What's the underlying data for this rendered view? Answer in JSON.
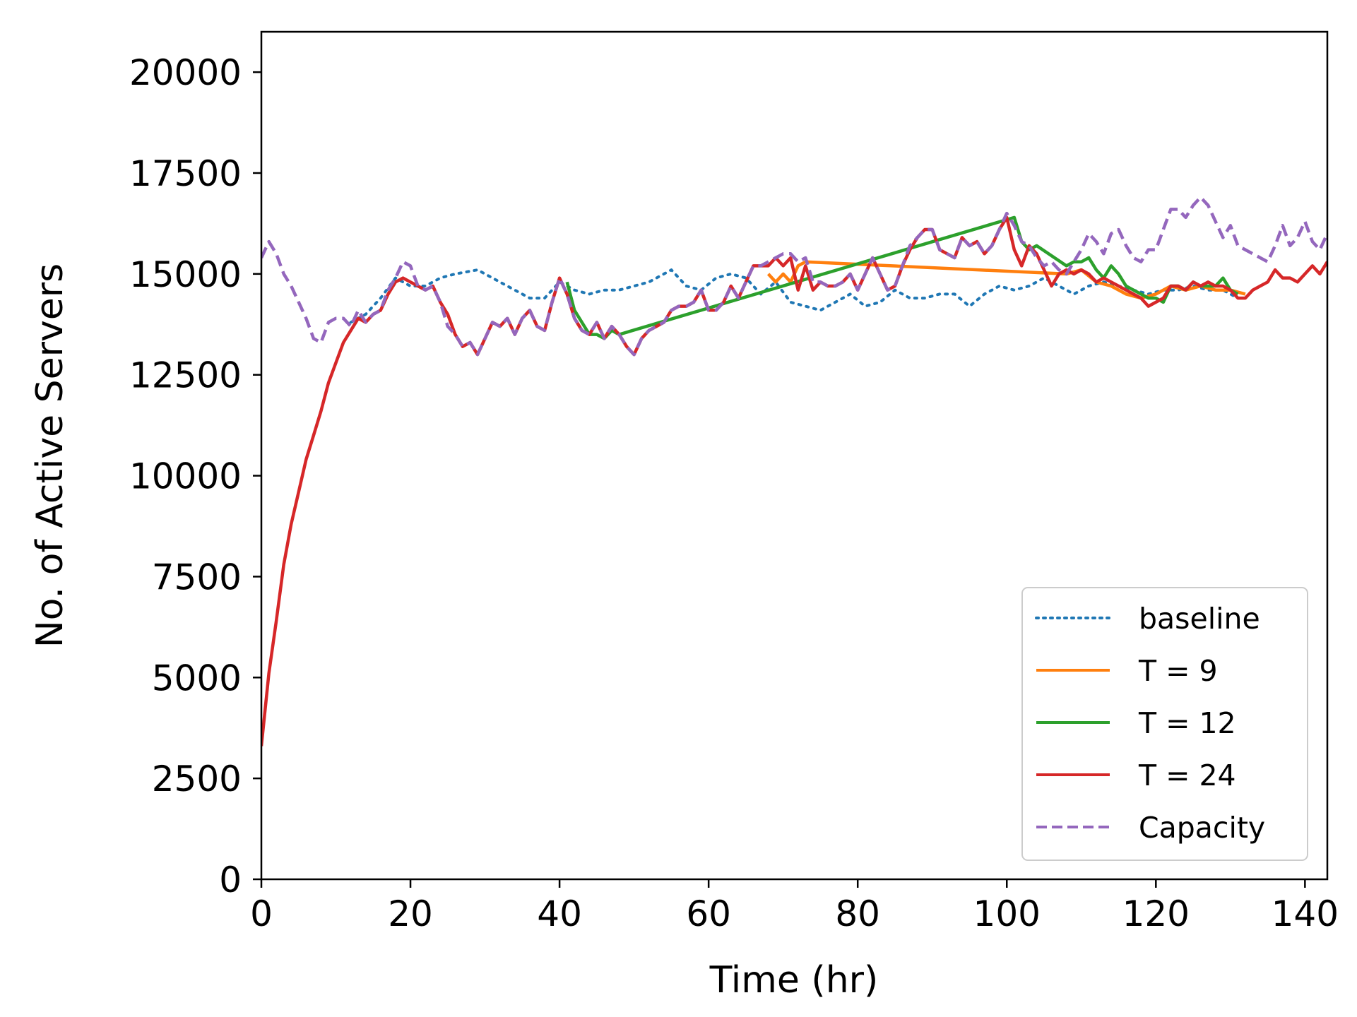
{
  "chart_data": {
    "type": "line",
    "xlabel": "Time (hr)",
    "ylabel": "No. of Active Servers",
    "xlim": [
      0,
      143
    ],
    "ylim": [
      0,
      21000
    ],
    "xticks": [
      0,
      20,
      40,
      60,
      80,
      100,
      120,
      140
    ],
    "yticks": [
      0,
      2500,
      5000,
      7500,
      10000,
      12500,
      15000,
      17500,
      20000
    ],
    "grid": false,
    "legend_position": "lower right",
    "series": [
      {
        "name": "baseline",
        "color": "#1f77b4",
        "style": "dotted",
        "x": [
          12,
          14,
          16,
          18,
          20,
          22,
          24,
          26,
          29,
          31,
          33,
          36,
          38,
          40,
          42,
          44,
          46,
          48,
          50,
          52,
          54,
          55,
          57,
          59,
          61,
          63,
          65,
          67,
          69,
          71,
          73,
          75,
          77,
          79,
          81,
          83,
          85,
          87,
          89,
          91,
          93,
          95,
          97,
          99,
          101,
          103,
          105,
          107,
          109,
          111,
          113,
          115,
          117,
          119,
          121,
          123,
          125,
          127,
          129,
          131
        ],
        "y": [
          13800,
          14000,
          14400,
          14900,
          14700,
          14700,
          14900,
          15000,
          15100,
          14900,
          14700,
          14400,
          14400,
          14800,
          14600,
          14500,
          14600,
          14600,
          14700,
          14800,
          15000,
          15100,
          14700,
          14600,
          14900,
          15000,
          14900,
          14500,
          14800,
          14300,
          14200,
          14100,
          14300,
          14500,
          14200,
          14300,
          14600,
          14400,
          14400,
          14500,
          14500,
          14200,
          14500,
          14700,
          14600,
          14700,
          14900,
          14700,
          14500,
          14700,
          14800,
          14700,
          14600,
          14500,
          14600,
          14600,
          14700,
          14600,
          14600,
          14400
        ]
      },
      {
        "name": "T = 9",
        "color": "#ff7f0e",
        "style": "solid",
        "x": [
          68,
          69,
          70,
          71,
          72,
          73,
          108,
          110,
          112,
          114,
          116,
          118,
          120,
          122,
          124,
          126,
          128,
          130,
          132
        ],
        "y": [
          15000,
          14800,
          15000,
          14800,
          15200,
          15300,
          15000,
          15100,
          14800,
          14700,
          14500,
          14400,
          14500,
          14700,
          14600,
          14700,
          14600,
          14600,
          14500
        ]
      },
      {
        "name": "T = 12",
        "color": "#2ca02c",
        "style": "solid",
        "x": [
          41,
          42,
          43,
          44,
          45,
          46,
          47,
          48,
          101,
          102,
          103,
          104,
          108,
          109,
          110,
          111,
          112,
          113,
          114,
          115,
          116,
          117,
          118,
          119,
          120,
          121,
          122,
          123,
          124,
          125,
          126,
          127,
          128,
          129,
          130,
          131
        ],
        "y": [
          14800,
          14100,
          13800,
          13500,
          13500,
          13400,
          13600,
          13500,
          16400,
          15800,
          15600,
          15700,
          15200,
          15300,
          15300,
          15400,
          15100,
          14900,
          15200,
          15000,
          14700,
          14600,
          14500,
          14400,
          14400,
          14300,
          14700,
          14700,
          14600,
          14800,
          14700,
          14700,
          14700,
          14900,
          14600,
          14500
        ]
      },
      {
        "name": "T = 24",
        "color": "#d62728",
        "style": "solid",
        "x": [
          0,
          0.5,
          1,
          2,
          3,
          4,
          5,
          6,
          7,
          8,
          9,
          10,
          11,
          12,
          13,
          14,
          15,
          16,
          17,
          18,
          19,
          20,
          21,
          22,
          23,
          24,
          25,
          26,
          27,
          28,
          29,
          30,
          31,
          32,
          33,
          34,
          35,
          36,
          37,
          38,
          39,
          40,
          41,
          42,
          43,
          44,
          45,
          46,
          47,
          48,
          49,
          50,
          51,
          52,
          53,
          54,
          55,
          56,
          57,
          58,
          59,
          60,
          61,
          62,
          63,
          64,
          65,
          66,
          67,
          68,
          69,
          70,
          71,
          72,
          73,
          74,
          75,
          76,
          77,
          78,
          79,
          80,
          81,
          82,
          83,
          84,
          85,
          86,
          87,
          88,
          89,
          90,
          91,
          92,
          93,
          94,
          95,
          96,
          97,
          98,
          99,
          100,
          101,
          102,
          103,
          104,
          105,
          106,
          107,
          108,
          109,
          110,
          111,
          112,
          113,
          114,
          115,
          116,
          117,
          118,
          119,
          120,
          121,
          122,
          123,
          124,
          125,
          126,
          127,
          128,
          129,
          130,
          131,
          132,
          133,
          134,
          135,
          136,
          137,
          138,
          139,
          140,
          141,
          142,
          143
        ],
        "y": [
          3300,
          4200,
          5100,
          6400,
          7800,
          8800,
          9600,
          10400,
          11000,
          11600,
          12300,
          12800,
          13300,
          13600,
          13900,
          13800,
          14000,
          14100,
          14500,
          14800,
          14900,
          14800,
          14700,
          14600,
          14700,
          14300,
          14000,
          13500,
          13200,
          13300,
          13000,
          13400,
          13800,
          13700,
          13900,
          13500,
          13900,
          14100,
          13700,
          13600,
          14300,
          14900,
          14500,
          13900,
          13600,
          13500,
          13800,
          13400,
          13700,
          13500,
          13200,
          13000,
          13400,
          13600,
          13700,
          13800,
          14100,
          14200,
          14200,
          14300,
          14600,
          14100,
          14100,
          14300,
          14700,
          14400,
          14800,
          15200,
          15200,
          15200,
          15400,
          15200,
          15400,
          14600,
          15200,
          14600,
          14800,
          14700,
          14700,
          14800,
          15000,
          14600,
          15000,
          15400,
          15000,
          14600,
          14700,
          15200,
          15600,
          15900,
          16100,
          16100,
          15600,
          15500,
          15400,
          15900,
          15700,
          15800,
          15500,
          15700,
          16100,
          16400,
          15600,
          15200,
          15700,
          15500,
          15100,
          14700,
          15000,
          15100,
          15000,
          15100,
          15000,
          14800,
          14900,
          14800,
          14700,
          14600,
          14500,
          14400,
          14200,
          14300,
          14400,
          14700,
          14700,
          14600,
          14800,
          14700,
          14800,
          14700,
          14700,
          14600,
          14400,
          14400,
          14600,
          14700,
          14800,
          15100,
          14900,
          14900,
          14800,
          15000,
          15200,
          15000,
          15300
        ]
      },
      {
        "name": "Capacity",
        "color": "#9467bd",
        "style": "dashed",
        "x": [
          0,
          1,
          2,
          3,
          4,
          5,
          6,
          7,
          8,
          9,
          10,
          11,
          12,
          13,
          14,
          15,
          16,
          17,
          18,
          19,
          20,
          21,
          22,
          23,
          24,
          25,
          26,
          27,
          28,
          29,
          30,
          31,
          32,
          33,
          34,
          35,
          36,
          37,
          38,
          39,
          40,
          41,
          42,
          43,
          44,
          45,
          46,
          47,
          48,
          49,
          50,
          51,
          52,
          53,
          54,
          55,
          56,
          57,
          58,
          59,
          60,
          61,
          62,
          63,
          64,
          65,
          66,
          67,
          68,
          69,
          70,
          71,
          72,
          73,
          74,
          75,
          76,
          77,
          78,
          79,
          80,
          81,
          82,
          83,
          84,
          85,
          86,
          87,
          88,
          89,
          90,
          91,
          92,
          93,
          94,
          95,
          96,
          97,
          98,
          99,
          100,
          101,
          102,
          103,
          104,
          105,
          106,
          107,
          108,
          109,
          110,
          111,
          112,
          113,
          114,
          115,
          116,
          117,
          118,
          119,
          120,
          121,
          122,
          123,
          124,
          125,
          126,
          127,
          128,
          129,
          130,
          131,
          132,
          133,
          134,
          135,
          136,
          137,
          138,
          139,
          140,
          141,
          142,
          143
        ],
        "y": [
          15400,
          15800,
          15500,
          15000,
          14700,
          14300,
          13900,
          13400,
          13300,
          13800,
          13900,
          13900,
          13700,
          14100,
          13800,
          14000,
          14100,
          14600,
          14900,
          15300,
          15200,
          14700,
          14600,
          14700,
          14300,
          13700,
          13500,
          13200,
          13300,
          13000,
          13400,
          13800,
          13700,
          13900,
          13500,
          13900,
          14100,
          13700,
          13600,
          14300,
          14900,
          14500,
          13900,
          13600,
          13500,
          13800,
          13400,
          13700,
          13500,
          13200,
          13000,
          13400,
          13600,
          13700,
          13800,
          14100,
          14200,
          14200,
          14300,
          14600,
          14100,
          14100,
          14300,
          14700,
          14400,
          14800,
          15200,
          15200,
          15300,
          15400,
          15500,
          15500,
          15300,
          15400,
          14800,
          14800,
          14700,
          14700,
          14800,
          15000,
          14600,
          15000,
          15400,
          15000,
          14600,
          14700,
          15200,
          15700,
          15900,
          16100,
          16100,
          15600,
          15500,
          15400,
          15900,
          15700,
          15800,
          15500,
          15700,
          16100,
          16500,
          16200,
          15800,
          15700,
          15400,
          15200,
          15300,
          15100,
          15000,
          15300,
          15600,
          16000,
          15800,
          15500,
          16000,
          16100,
          15700,
          15400,
          15300,
          15600,
          15600,
          16100,
          16600,
          16600,
          16400,
          16700,
          16900,
          16700,
          16300,
          15900,
          16200,
          15700,
          15600,
          15500,
          15400,
          15300,
          15700,
          16200,
          15700,
          15900,
          16300,
          15800,
          15600,
          16000
        ]
      }
    ]
  }
}
